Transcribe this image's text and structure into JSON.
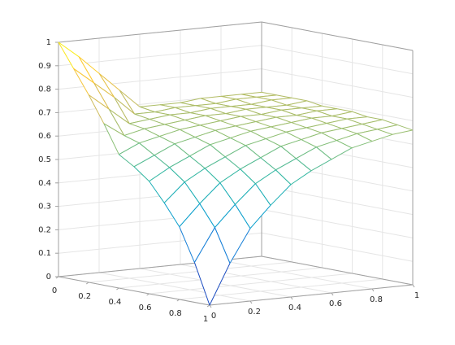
{
  "chart_data": {
    "type": "mesh",
    "x": [
      0,
      0.1,
      0.2,
      0.3,
      0.4,
      0.5,
      0.6,
      0.7,
      0.8,
      0.9,
      1
    ],
    "y": [
      0,
      0.1,
      0.2,
      0.3,
      0.4,
      0.5,
      0.6,
      0.7,
      0.8,
      0.9,
      1
    ],
    "z": [
      [
        1.0,
        0.9,
        0.8,
        0.69,
        0.57,
        0.53,
        0.48,
        0.4,
        0.31,
        0.17,
        0.0
      ],
      [
        0.93,
        0.83,
        0.73,
        0.63,
        0.61,
        0.57,
        0.53,
        0.48,
        0.4,
        0.31,
        0.17
      ],
      [
        0.85,
        0.76,
        0.66,
        0.65,
        0.63,
        0.61,
        0.57,
        0.53,
        0.48,
        0.4,
        0.31
      ],
      [
        0.77,
        0.68,
        0.67,
        0.66,
        0.65,
        0.63,
        0.61,
        0.57,
        0.53,
        0.48,
        0.4
      ],
      [
        0.69,
        0.68,
        0.68,
        0.67,
        0.66,
        0.65,
        0.63,
        0.61,
        0.57,
        0.53,
        0.48
      ],
      [
        0.69,
        0.69,
        0.68,
        0.68,
        0.67,
        0.66,
        0.65,
        0.63,
        0.61,
        0.57,
        0.53
      ],
      [
        0.69,
        0.69,
        0.69,
        0.68,
        0.68,
        0.67,
        0.66,
        0.65,
        0.63,
        0.61,
        0.57
      ],
      [
        0.7,
        0.69,
        0.69,
        0.69,
        0.68,
        0.68,
        0.67,
        0.66,
        0.65,
        0.63,
        0.61
      ],
      [
        0.7,
        0.7,
        0.69,
        0.69,
        0.69,
        0.68,
        0.68,
        0.67,
        0.66,
        0.65,
        0.63
      ],
      [
        0.7,
        0.7,
        0.7,
        0.69,
        0.69,
        0.69,
        0.68,
        0.68,
        0.67,
        0.66,
        0.65
      ],
      [
        0.7,
        0.7,
        0.7,
        0.7,
        0.69,
        0.69,
        0.69,
        0.68,
        0.68,
        0.67,
        0.66
      ]
    ],
    "xlim": [
      0,
      1
    ],
    "ylim": [
      0,
      1
    ],
    "zlim": [
      0,
      1
    ],
    "xticks": [
      0,
      0.2,
      0.4,
      0.6,
      0.8,
      1
    ],
    "yticks": [
      0,
      0.2,
      0.4,
      0.6,
      0.8,
      1
    ],
    "zticks": [
      0,
      0.1,
      0.2,
      0.3,
      0.4,
      0.5,
      0.6,
      0.7,
      0.8,
      0.9,
      1
    ],
    "grid": true,
    "colormap": [
      "#352a87",
      "#0f5cdd",
      "#1481d6",
      "#06a4ca",
      "#2eb7a4",
      "#87bf77",
      "#d1bb59",
      "#fec832",
      "#f9fb0e"
    ]
  }
}
